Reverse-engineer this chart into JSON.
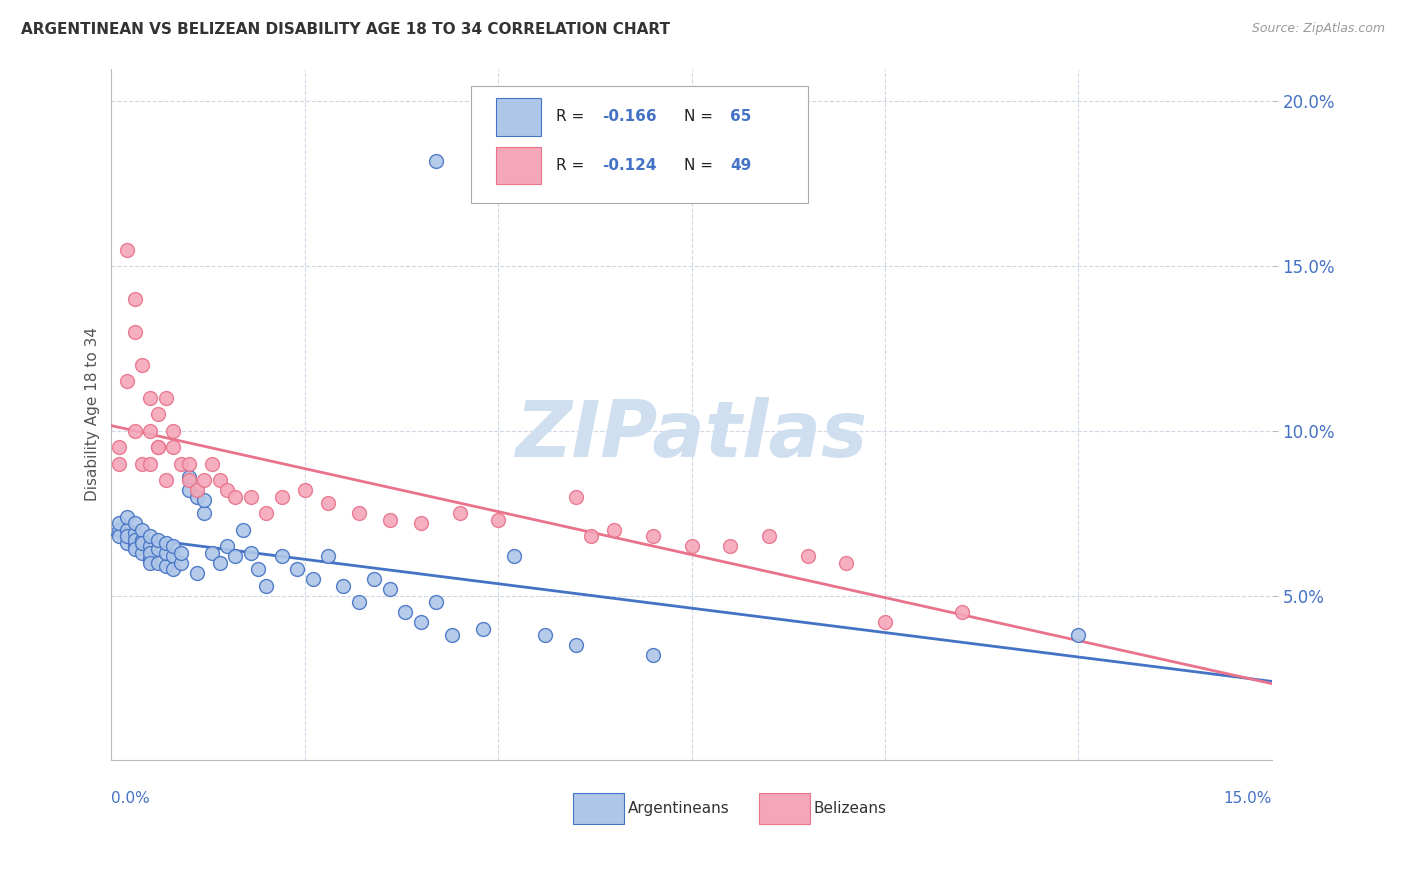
{
  "title": "ARGENTINEAN VS BELIZEAN DISABILITY AGE 18 TO 34 CORRELATION CHART",
  "source": "Source: ZipAtlas.com",
  "ylabel": "Disability Age 18 to 34",
  "right_yticks": [
    "20.0%",
    "15.0%",
    "10.0%",
    "5.0%"
  ],
  "right_ytick_vals": [
    0.2,
    0.15,
    0.1,
    0.05
  ],
  "xmin": 0.0,
  "xmax": 0.15,
  "ymin": 0.0,
  "ymax": 0.21,
  "legend_R1": "R = -0.166",
  "legend_N1": "N = 65",
  "legend_R2": "R = -0.124",
  "legend_N2": "N = 49",
  "color_arg": "#aec6e8",
  "color_bel": "#f4a7b9",
  "line_color_arg": "#4472c4",
  "line_color_bel": "#e8738a",
  "watermark": "ZIPatlas",
  "watermark_color": "#d0dff0",
  "arg_x": [
    0.001,
    0.001,
    0.001,
    0.002,
    0.002,
    0.002,
    0.002,
    0.003,
    0.003,
    0.003,
    0.003,
    0.003,
    0.004,
    0.004,
    0.004,
    0.004,
    0.005,
    0.005,
    0.005,
    0.005,
    0.005,
    0.006,
    0.006,
    0.006,
    0.007,
    0.007,
    0.007,
    0.008,
    0.008,
    0.008,
    0.009,
    0.009,
    0.01,
    0.01,
    0.011,
    0.011,
    0.012,
    0.012,
    0.013,
    0.014,
    0.015,
    0.016,
    0.017,
    0.018,
    0.019,
    0.02,
    0.022,
    0.024,
    0.026,
    0.028,
    0.03,
    0.032,
    0.034,
    0.036,
    0.038,
    0.04,
    0.042,
    0.044,
    0.048,
    0.052,
    0.056,
    0.06,
    0.07,
    0.125,
    0.042
  ],
  "arg_y": [
    0.07,
    0.068,
    0.072,
    0.066,
    0.07,
    0.074,
    0.068,
    0.065,
    0.069,
    0.072,
    0.067,
    0.064,
    0.063,
    0.067,
    0.07,
    0.066,
    0.061,
    0.065,
    0.068,
    0.063,
    0.06,
    0.064,
    0.067,
    0.06,
    0.059,
    0.063,
    0.066,
    0.062,
    0.058,
    0.065,
    0.06,
    0.063,
    0.086,
    0.082,
    0.08,
    0.057,
    0.075,
    0.079,
    0.063,
    0.06,
    0.065,
    0.062,
    0.07,
    0.063,
    0.058,
    0.053,
    0.062,
    0.058,
    0.055,
    0.062,
    0.053,
    0.048,
    0.055,
    0.052,
    0.045,
    0.042,
    0.048,
    0.038,
    0.04,
    0.062,
    0.038,
    0.035,
    0.032,
    0.038,
    0.182
  ],
  "bel_x": [
    0.001,
    0.001,
    0.002,
    0.002,
    0.003,
    0.003,
    0.003,
    0.004,
    0.004,
    0.005,
    0.005,
    0.005,
    0.006,
    0.006,
    0.006,
    0.007,
    0.007,
    0.008,
    0.008,
    0.009,
    0.01,
    0.01,
    0.011,
    0.012,
    0.013,
    0.014,
    0.015,
    0.016,
    0.018,
    0.02,
    0.022,
    0.025,
    0.028,
    0.032,
    0.036,
    0.04,
    0.045,
    0.05,
    0.06,
    0.062,
    0.065,
    0.07,
    0.075,
    0.08,
    0.085,
    0.09,
    0.095,
    0.1,
    0.11
  ],
  "bel_y": [
    0.095,
    0.09,
    0.115,
    0.155,
    0.14,
    0.1,
    0.13,
    0.09,
    0.12,
    0.1,
    0.11,
    0.09,
    0.095,
    0.105,
    0.095,
    0.085,
    0.11,
    0.095,
    0.1,
    0.09,
    0.085,
    0.09,
    0.082,
    0.085,
    0.09,
    0.085,
    0.082,
    0.08,
    0.08,
    0.075,
    0.08,
    0.082,
    0.078,
    0.075,
    0.073,
    0.072,
    0.075,
    0.073,
    0.08,
    0.068,
    0.07,
    0.068,
    0.065,
    0.065,
    0.068,
    0.062,
    0.06,
    0.042,
    0.045
  ]
}
